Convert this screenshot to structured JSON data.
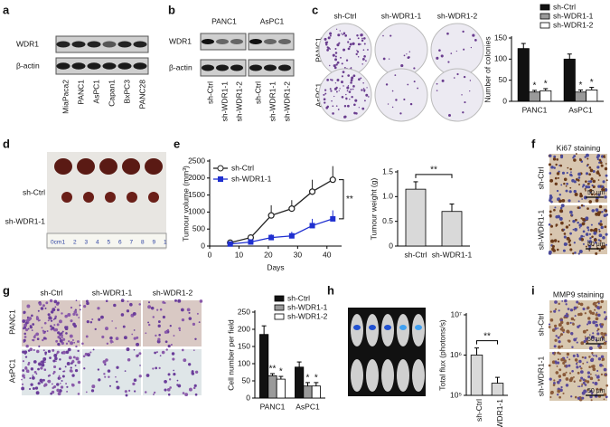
{
  "panels": {
    "a": {
      "letter": "a",
      "rows": [
        "WDR1",
        "β-actin"
      ],
      "lanes": [
        "MiaPaca2",
        "PANC1",
        "AsPC1",
        "Capan1",
        "BxPC3",
        "PANC28"
      ]
    },
    "b": {
      "letter": "b",
      "groups": [
        "PANC1",
        "AsPC1"
      ],
      "rows": [
        "WDR1",
        "β-actin"
      ],
      "lanes": [
        "sh-Ctrl",
        "sh-WDR1-1",
        "sh-WDR1-2",
        "sh-Ctrl",
        "sh-WDR1-1",
        "sh-WDR1-2"
      ]
    },
    "c": {
      "letter": "c",
      "columns": [
        "sh-Ctrl",
        "sh-WDR1-1",
        "sh-WDR1-2"
      ],
      "rows": [
        "PANC1",
        "AsPC1"
      ]
    },
    "d": {
      "letter": "d",
      "rows": [
        "sh-Ctrl",
        "sh-WDR1-1"
      ],
      "ruler": [
        "0cm",
        "1",
        "2",
        "3",
        "4",
        "5",
        "6",
        "7",
        "8",
        "9",
        "1"
      ]
    },
    "e": {
      "letter": "e"
    },
    "f": {
      "letter": "f",
      "title": "Ki67 staining",
      "rows": [
        "sh-Ctrl",
        "sh-WDR1-1"
      ],
      "scale_bars": [
        "50 μm",
        "50 μm"
      ]
    },
    "g": {
      "letter": "g",
      "columns": [
        "sh-Ctrl",
        "sh-WDR1-1",
        "sh-WDR1-2"
      ],
      "rows": [
        "PANC1",
        "AsPC1"
      ]
    },
    "h": {
      "letter": "h"
    },
    "i": {
      "letter": "i",
      "title": "MMP9 staining",
      "rows": [
        "sh-Ctrl",
        "sh-WDR1-1"
      ],
      "scale_bars": [
        "50 μm",
        "50 μm"
      ]
    }
  },
  "chart_data": [
    {
      "type": "bar",
      "ylabel": "Number of colonies",
      "categories": [
        "PANC1",
        "AsPC1"
      ],
      "ylim": [
        0,
        150
      ],
      "yticks": [
        0,
        50,
        100,
        150
      ],
      "legend": "upper right",
      "series": [
        {
          "name": "sh-Ctrl",
          "color": "#111111",
          "values": [
            125,
            100
          ],
          "errors": [
            12,
            12
          ]
        },
        {
          "name": "sh-WDR1-1",
          "color": "#9a9a9a",
          "values": [
            22,
            22
          ],
          "errors": [
            4,
            5
          ],
          "significance": [
            "*",
            "*"
          ]
        },
        {
          "name": "sh-WDR1-2",
          "color": "#ffffff",
          "values": [
            25,
            27
          ],
          "errors": [
            5,
            6
          ],
          "significance": [
            "*",
            "*"
          ]
        }
      ]
    },
    {
      "type": "line",
      "ylabel": "Tumour volume (mm³)",
      "xlabel": "Days",
      "x": [
        7,
        14,
        21,
        28,
        35,
        42
      ],
      "xlim": [
        0,
        45
      ],
      "xticks": [
        0,
        10,
        20,
        30,
        40
      ],
      "ylim": [
        0,
        2500
      ],
      "yticks": [
        0,
        500,
        1000,
        1500,
        2000,
        2500
      ],
      "legend": "upper left",
      "annotation": "**",
      "series": [
        {
          "name": "sh-Ctrl",
          "color": "#222222",
          "marker": "open-circle",
          "values": [
            100,
            250,
            900,
            1100,
            1600,
            1950
          ],
          "errors": [
            30,
            80,
            300,
            250,
            350,
            400
          ]
        },
        {
          "name": "sh-WDR1-1",
          "color": "#1f2fd0",
          "marker": "square",
          "values": [
            60,
            120,
            250,
            300,
            600,
            800
          ],
          "errors": [
            20,
            40,
            100,
            120,
            200,
            250
          ]
        }
      ]
    },
    {
      "type": "bar",
      "ylabel": "Tumour weight (g)",
      "categories": [
        "sh-Ctrl",
        "sh-WDR1-1"
      ],
      "values": [
        1.15,
        0.7
      ],
      "errors": [
        0.15,
        0.15
      ],
      "color": "#d9d9d9",
      "ylim": [
        0,
        1.5
      ],
      "yticks": [
        0,
        0.5,
        {
          "value": 1,
          "label": "1.0"
        },
        1.5
      ],
      "annotation": "**"
    },
    {
      "type": "bar",
      "ylabel": "Cell number per field",
      "categories": [
        "PANC1",
        "AsPC1"
      ],
      "ylim": [
        0,
        250
      ],
      "yticks": [
        0,
        50,
        100,
        150,
        200,
        250
      ],
      "legend": "upper right",
      "series": [
        {
          "name": "sh-Ctrl",
          "color": "#111111",
          "values": [
            185,
            90
          ],
          "errors": [
            25,
            15
          ]
        },
        {
          "name": "sh-WDR1-1",
          "color": "#9a9a9a",
          "values": [
            65,
            35
          ],
          "errors": [
            6,
            10
          ],
          "significance": [
            "**",
            "*"
          ]
        },
        {
          "name": "sh-WDR1-2",
          "color": "#ffffff",
          "values": [
            55,
            35
          ],
          "errors": [
            8,
            10
          ],
          "significance": [
            "*",
            "*"
          ]
        }
      ]
    },
    {
      "type": "bar",
      "ylabel": "Total flux (photons/s)",
      "categories": [
        "sh-Ctrl",
        "sh-WDR1-1"
      ],
      "values": [
        1000000,
        200000
      ],
      "errors": [
        500000,
        80000
      ],
      "color": "#d9d9d9",
      "log": true,
      "ylim": [
        100000,
        10000000
      ],
      "rotate_categories": true,
      "yticks": [
        {
          "value": 100000,
          "label": "10⁵"
        },
        {
          "value": 1000000,
          "label": "10⁶"
        },
        {
          "value": 10000000,
          "label": "10⁷"
        }
      ],
      "annotation": "**"
    }
  ]
}
